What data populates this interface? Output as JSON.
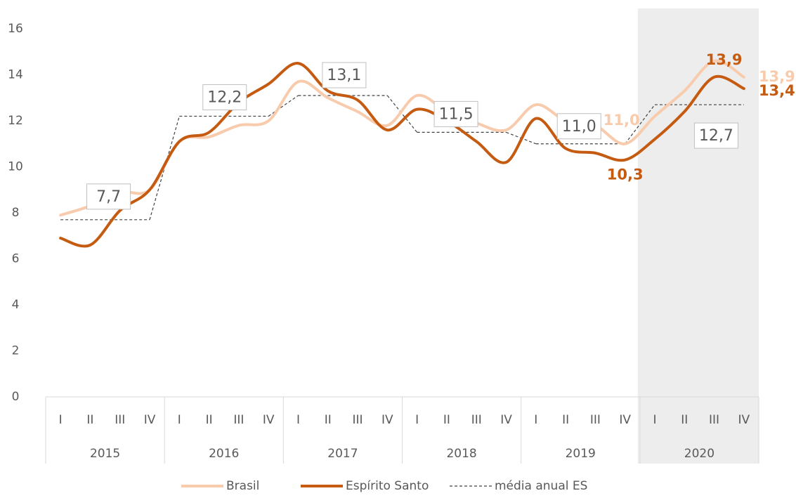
{
  "chart_data": {
    "type": "line",
    "categories": [
      "I",
      "II",
      "III",
      "IV",
      "I",
      "II",
      "III",
      "IV",
      "I",
      "II",
      "III",
      "IV",
      "I",
      "II",
      "III",
      "IV",
      "I",
      "II",
      "III",
      "IV",
      "I",
      "II",
      "III",
      "IV"
    ],
    "years": [
      "2015",
      "2016",
      "2017",
      "2018",
      "2019",
      "2020"
    ],
    "shaded_year": "2020",
    "ylim": [
      0,
      16
    ],
    "yticks": [
      0,
      2,
      4,
      6,
      8,
      10,
      12,
      14,
      16
    ],
    "legend": "bottom",
    "series": [
      {
        "name": "Brasil",
        "color": "#f8cbad",
        "values": [
          7.9,
          8.3,
          8.9,
          9.0,
          11.1,
          11.3,
          11.8,
          12.0,
          13.7,
          13.0,
          12.4,
          11.8,
          13.1,
          12.4,
          11.9,
          11.6,
          12.7,
          12.0,
          11.8,
          11.0,
          12.2,
          13.3,
          14.6,
          13.9
        ],
        "value_labels": [
          null,
          null,
          null,
          null,
          null,
          null,
          null,
          null,
          null,
          null,
          null,
          null,
          null,
          null,
          null,
          null,
          null,
          null,
          null,
          "11,0",
          null,
          null,
          null,
          "13,9"
        ]
      },
      {
        "name": "Espírito Santo",
        "color": "#c55a11",
        "values": [
          6.9,
          6.6,
          8.1,
          9.0,
          11.1,
          11.5,
          12.8,
          13.6,
          14.5,
          13.3,
          12.9,
          11.6,
          12.5,
          12.0,
          11.1,
          10.2,
          12.1,
          10.8,
          10.6,
          10.3,
          11.2,
          12.4,
          13.9,
          13.4
        ],
        "value_labels": [
          null,
          null,
          null,
          null,
          null,
          null,
          null,
          null,
          null,
          null,
          null,
          null,
          null,
          null,
          null,
          null,
          null,
          null,
          null,
          "10,3",
          null,
          null,
          "13,9",
          "13,4"
        ]
      }
    ],
    "annual_mean": {
      "name": "média anual ES",
      "color": "#404040",
      "values": [
        7.7,
        12.2,
        13.1,
        11.5,
        11.0,
        12.7
      ],
      "value_labels": [
        "7,7",
        "12,2",
        "13,1",
        "11,5",
        "11,0",
        "12,7"
      ]
    }
  }
}
